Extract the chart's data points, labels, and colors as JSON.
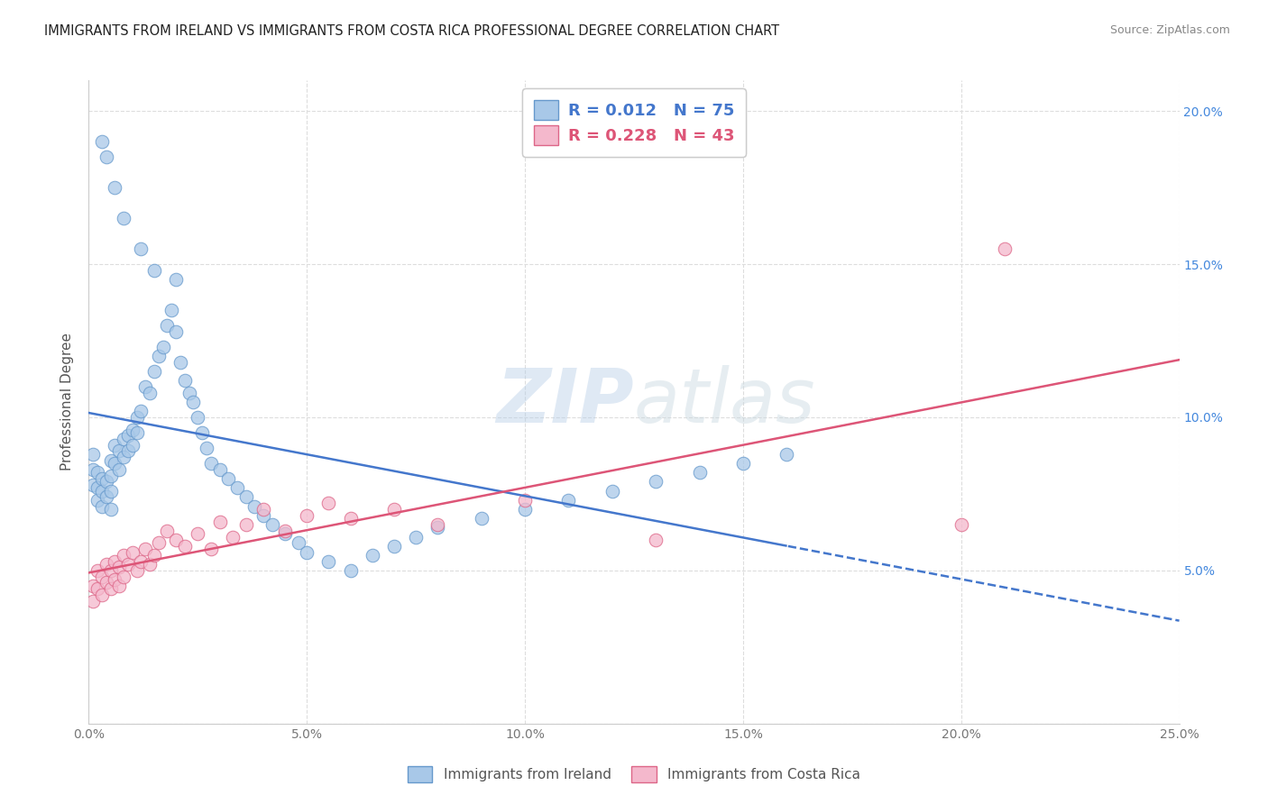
{
  "title": "IMMIGRANTS FROM IRELAND VS IMMIGRANTS FROM COSTA RICA PROFESSIONAL DEGREE CORRELATION CHART",
  "source": "Source: ZipAtlas.com",
  "ylabel": "Professional Degree",
  "xlim": [
    0,
    0.25
  ],
  "ylim": [
    0,
    0.21
  ],
  "ireland_color": "#a8c8e8",
  "ireland_edge": "#6699cc",
  "costa_rica_color": "#f4b8cc",
  "costa_rica_edge": "#dd6688",
  "ireland_line_color": "#4477cc",
  "costa_rica_line_color": "#dd5577",
  "ireland_R": "0.012",
  "ireland_N": "75",
  "costa_rica_R": "0.228",
  "costa_rica_N": "43",
  "watermark_zip": "ZIP",
  "watermark_atlas": "atlas",
  "background_color": "#ffffff",
  "grid_color": "#dddddd",
  "right_tick_color": "#4488dd"
}
